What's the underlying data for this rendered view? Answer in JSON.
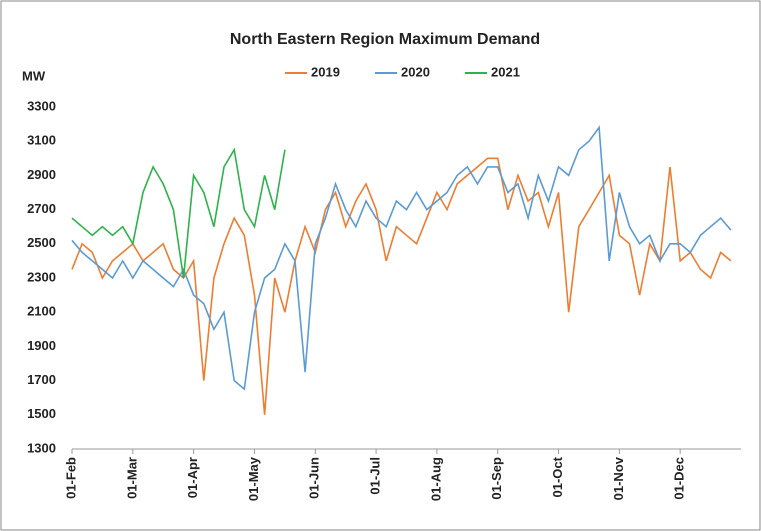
{
  "chart_data": {
    "type": "line",
    "title": "North Eastern Region Maximum Demand",
    "ylabel": "MW",
    "x": [
      "01-Feb",
      "06-Feb",
      "11-Feb",
      "16-Feb",
      "21-Feb",
      "26-Feb",
      "01-Mar",
      "06-Mar",
      "11-Mar",
      "16-Mar",
      "21-Mar",
      "26-Mar",
      "01-Apr",
      "06-Apr",
      "11-Apr",
      "16-Apr",
      "21-Apr",
      "26-Apr",
      "01-May",
      "06-May",
      "11-May",
      "16-May",
      "21-May",
      "26-May",
      "01-Jun",
      "06-Jun",
      "11-Jun",
      "16-Jun",
      "21-Jun",
      "26-Jun",
      "01-Jul",
      "06-Jul",
      "11-Jul",
      "16-Jul",
      "21-Jul",
      "26-Jul",
      "01-Aug",
      "06-Aug",
      "11-Aug",
      "16-Aug",
      "21-Aug",
      "26-Aug",
      "01-Sep",
      "06-Sep",
      "11-Sep",
      "16-Sep",
      "21-Sep",
      "26-Sep",
      "01-Oct",
      "06-Oct",
      "11-Oct",
      "16-Oct",
      "21-Oct",
      "26-Oct",
      "01-Nov",
      "06-Nov",
      "11-Nov",
      "16-Nov",
      "21-Nov",
      "26-Nov",
      "01-Dec",
      "06-Dec",
      "11-Dec",
      "16-Dec",
      "21-Dec",
      "26-Dec"
    ],
    "xticks": [
      "01-Feb",
      "01-Mar",
      "01-Apr",
      "01-May",
      "01-Jun",
      "01-Jul",
      "01-Aug",
      "01-Sep",
      "01-Oct",
      "01-Nov",
      "01-Dec"
    ],
    "series": [
      {
        "name": "2019",
        "color": "#ed7d31",
        "values": [
          2350,
          2500,
          2450,
          2300,
          2400,
          2450,
          2500,
          2400,
          2450,
          2500,
          2350,
          2300,
          2400,
          1700,
          2300,
          2500,
          2650,
          2550,
          2200,
          1500,
          2300,
          2100,
          2400,
          2600,
          2450,
          2700,
          2800,
          2600,
          2750,
          2850,
          2700,
          2400,
          2600,
          2550,
          2500,
          2650,
          2800,
          2700,
          2850,
          2900,
          2950,
          3000,
          3000,
          2700,
          2900,
          2750,
          2800,
          2600,
          2800,
          2100,
          2600,
          2700,
          2800,
          2900,
          2550,
          2500,
          2200,
          2500,
          2400,
          2950,
          2400,
          2450,
          2350,
          2300,
          2450,
          2400
        ]
      },
      {
        "name": "2020",
        "color": "#5b9bd5",
        "values": [
          2520,
          2450,
          2400,
          2350,
          2300,
          2400,
          2300,
          2400,
          2350,
          2300,
          2250,
          2350,
          2200,
          2150,
          2000,
          2100,
          1700,
          1650,
          2100,
          2300,
          2350,
          2500,
          2400,
          1750,
          2500,
          2650,
          2850,
          2700,
          2600,
          2750,
          2650,
          2600,
          2750,
          2700,
          2800,
          2700,
          2750,
          2800,
          2900,
          2950,
          2850,
          2950,
          2950,
          2800,
          2850,
          2650,
          2900,
          2750,
          2950,
          2900,
          3050,
          3100,
          3180,
          2400,
          2800,
          2600,
          2500,
          2550,
          2400,
          2500,
          2500,
          2450,
          2550,
          2600,
          2650,
          2580
        ]
      },
      {
        "name": "2021",
        "color": "#2db34a",
        "values": [
          2650,
          2600,
          2550,
          2600,
          2550,
          2600,
          2500,
          2800,
          2950,
          2850,
          2700,
          2300,
          2900,
          2800,
          2600,
          2950,
          3050,
          2700,
          2600,
          2900,
          2700,
          3050,
          null,
          null,
          null,
          null,
          null,
          null,
          null,
          null,
          null,
          null,
          null,
          null,
          null,
          null,
          null,
          null,
          null,
          null,
          null,
          null,
          null,
          null,
          null,
          null,
          null,
          null,
          null,
          null,
          null,
          null,
          null,
          null,
          null,
          null,
          null,
          null,
          null,
          null,
          null,
          null,
          null,
          null,
          null,
          null
        ]
      }
    ],
    "ylim": [
      1300,
      3300
    ],
    "yticks": [
      1300,
      1500,
      1700,
      1900,
      2100,
      2300,
      2500,
      2700,
      2900,
      3100,
      3300
    ]
  }
}
